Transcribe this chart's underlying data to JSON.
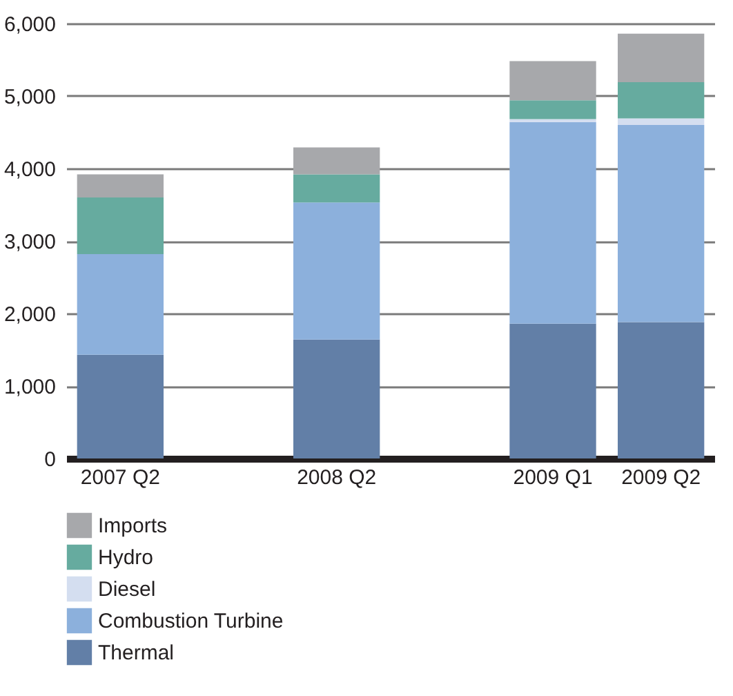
{
  "chart_data": {
    "type": "bar",
    "stacked": true,
    "categories": [
      "2007 Q2",
      null,
      "2008 Q2",
      null,
      "2009 Q1",
      "2009 Q2"
    ],
    "series": [
      {
        "name": "Thermal",
        "color": "#627fa7",
        "values": [
          1430,
          null,
          1640,
          null,
          1860,
          1880
        ]
      },
      {
        "name": "Combustion Turbine",
        "color": "#8cb0dc",
        "values": [
          1390,
          null,
          1890,
          null,
          2780,
          2720
        ]
      },
      {
        "name": "Diesel",
        "color": "#d4def0",
        "values": [
          0,
          null,
          0,
          null,
          40,
          90
        ]
      },
      {
        "name": "Hydro",
        "color": "#66ab9f",
        "values": [
          780,
          null,
          390,
          null,
          260,
          500
        ]
      },
      {
        "name": "Imports",
        "color": "#a7a8ab",
        "values": [
          320,
          null,
          370,
          null,
          540,
          670
        ]
      }
    ],
    "ylim": [
      0,
      6000
    ],
    "yticks": [
      {
        "value": 0,
        "label": "0"
      },
      {
        "value": 1000,
        "label": "1,000"
      },
      {
        "value": 2000,
        "label": "2,000"
      },
      {
        "value": 3000,
        "label": "3,000"
      },
      {
        "value": 4000,
        "label": "4,000"
      },
      {
        "value": 5000,
        "label": "5,000"
      },
      {
        "value": 6000,
        "label": "6,000"
      }
    ],
    "grid": "y",
    "legend": "bottom left"
  }
}
